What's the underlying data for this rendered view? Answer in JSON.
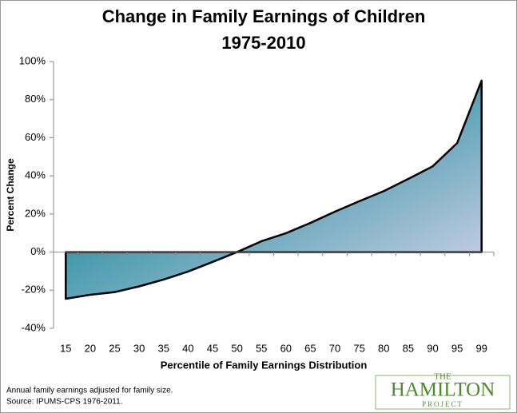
{
  "chart_data": {
    "type": "area",
    "title": "Change in Family Earnings of Children",
    "subtitle": "1975-2010",
    "x_label": "Percentile of Family Earnings Distribution",
    "y_label": "Percent Change",
    "categories": [
      "15",
      "20",
      "25",
      "30",
      "35",
      "40",
      "45",
      "50",
      "55",
      "60",
      "65",
      "70",
      "75",
      "80",
      "85",
      "90",
      "95",
      "99"
    ],
    "values": [
      -24.5,
      -22.4,
      -21,
      -18,
      -14.4,
      -10.2,
      -5.2,
      0,
      5.7,
      9.9,
      15.3,
      21.2,
      26.7,
      32,
      38.4,
      45,
      57.2,
      90
    ],
    "color": "#2a8fa0",
    "ylim": [
      -40,
      100
    ],
    "yticks": [
      {
        "value": -40,
        "label": "-40%"
      },
      {
        "value": -20,
        "label": "-20%"
      },
      {
        "value": 0,
        "label": "0%"
      },
      {
        "value": 20,
        "label": "20%"
      },
      {
        "value": 40,
        "label": "40%"
      },
      {
        "value": 60,
        "label": "60%"
      },
      {
        "value": 80,
        "label": "80%"
      },
      {
        "value": 100,
        "label": "100%"
      }
    ],
    "grid": false,
    "notes": [
      "Annual family earnings adjusted for family size.",
      "Source: IPUMS-CPS 1976-2011."
    ],
    "logo": {
      "top": "THE",
      "main": "HAMILTON",
      "bottom": "PROJECT"
    }
  }
}
